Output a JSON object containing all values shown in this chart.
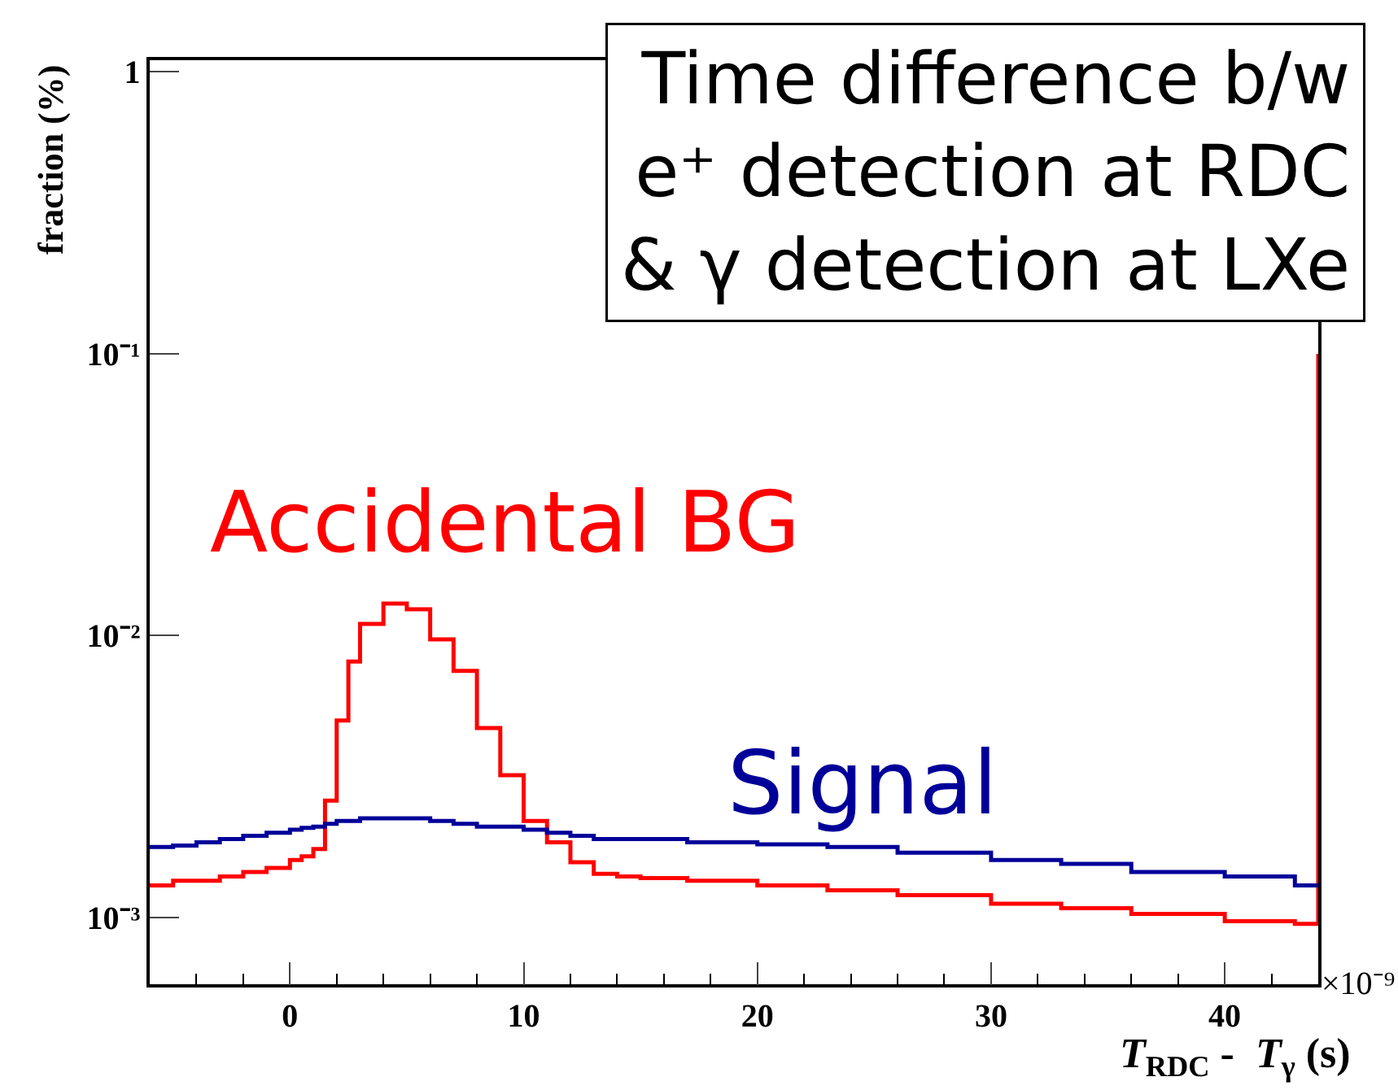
{
  "chart_data": {
    "type": "step",
    "annotations": [
      "Time difference b/w\ne⁺ detection at RDC\n& γ detection at LXe",
      "×10⁻⁹"
    ],
    "xlabel": "T$_{RDC}$ -  T$_{γ}$ (s)",
    "ylabel": "fraction (%)",
    "x": [
      -6,
      -5,
      -4,
      -3,
      -2,
      -1,
      0,
      0.5,
      1,
      1.5,
      2,
      2.5,
      3,
      4,
      5,
      6,
      7,
      8,
      9,
      10,
      11,
      12,
      13,
      14,
      15,
      17,
      20,
      23,
      26,
      30,
      33,
      36,
      40,
      43,
      44
    ],
    "series": [
      {
        "name": "Accidental BG",
        "color": "#ff0000",
        "values": [
          0.0013,
          0.00135,
          0.00135,
          0.0014,
          0.00145,
          0.0015,
          0.0016,
          0.00165,
          0.00175,
          0.0026,
          0.005,
          0.0081,
          0.011,
          0.013,
          0.0124,
          0.0097,
          0.0075,
          0.0047,
          0.0032,
          0.0022,
          0.00185,
          0.00157,
          0.00143,
          0.0014,
          0.00138,
          0.00135,
          0.0013,
          0.00125,
          0.0012,
          0.00112,
          0.00108,
          0.00103,
          0.00097,
          0.00095,
          0.1
        ]
      },
      {
        "name": "Signal",
        "color": "#000099",
        "values": [
          0.00178,
          0.0018,
          0.00185,
          0.0019,
          0.00195,
          0.002,
          0.00205,
          0.00208,
          0.0021,
          0.00215,
          0.0022,
          0.0022,
          0.00225,
          0.00225,
          0.00225,
          0.0022,
          0.00215,
          0.0021,
          0.0021,
          0.00205,
          0.002,
          0.00195,
          0.0019,
          0.0019,
          0.0019,
          0.00185,
          0.00182,
          0.00178,
          0.0017,
          0.0016,
          0.00155,
          0.00145,
          0.0014,
          0.0013,
          0.0013
        ]
      }
    ],
    "xlim": [
      -6,
      44
    ],
    "xticks": [
      0,
      10,
      20,
      30,
      40
    ],
    "ylim": [
      0.00058,
      1.1
    ],
    "log": true,
    "yticks": [
      {
        "value": 0.001,
        "label": "10⁻³"
      },
      {
        "value": 0.01,
        "label": "10⁻²"
      },
      {
        "value": 0.1,
        "label": "10⁻¹"
      },
      1
    ],
    "grid": false,
    "legend": false
  }
}
